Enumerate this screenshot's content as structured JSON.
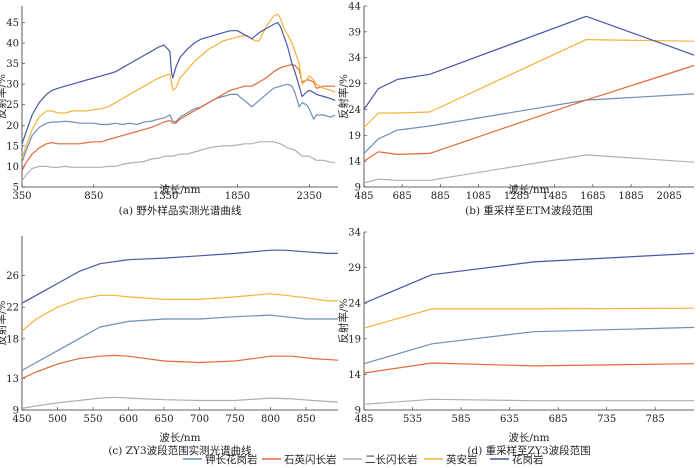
{
  "legend": {
    "placement": "bottom-center",
    "items": [
      {
        "label": "钾长花岗岩",
        "color": "#6f8fb8"
      },
      {
        "label": "石英闪长岩",
        "color": "#e26a3a"
      },
      {
        "label": "二长闪长岩",
        "color": "#b0b0b0"
      },
      {
        "label": "英安岩",
        "color": "#f3b23a"
      },
      {
        "label": "花岗岩",
        "color": "#4a57a3"
      }
    ]
  },
  "chart_data": [
    {
      "type": "line",
      "caption": "(a) 野外样品实测光谱曲线",
      "xlabel": "波长/nm",
      "ylabel": "反射率/%",
      "xlim": [
        350,
        2550
      ],
      "ylim": [
        5,
        49
      ],
      "xticks": [
        350,
        850,
        1350,
        1850,
        2350
      ],
      "yticks": [
        5,
        10,
        15,
        20,
        25,
        30,
        35,
        40,
        45
      ],
      "series": [
        {
          "name": "钾长花岗岩",
          "color": "#6f8fb8",
          "x": [
            350,
            380,
            420,
            470,
            520,
            560,
            600,
            650,
            700,
            750,
            800,
            850,
            900,
            950,
            1000,
            1050,
            1100,
            1150,
            1200,
            1250,
            1300,
            1340,
            1380,
            1400,
            1420,
            1450,
            1500,
            1550,
            1600,
            1650,
            1700,
            1750,
            1800,
            1850,
            1870,
            1900,
            1950,
            2000,
            2050,
            2100,
            2150,
            2200,
            2230,
            2250,
            2280,
            2300,
            2330,
            2350,
            2380,
            2400,
            2450,
            2500,
            2530
          ],
          "y": [
            11,
            14,
            17.5,
            19.5,
            20.5,
            20.8,
            20.8,
            21,
            20.8,
            20.5,
            20.5,
            20.5,
            20.2,
            20.2,
            20.5,
            20.2,
            20.5,
            20.2,
            20.8,
            21,
            21.5,
            21.8,
            22.5,
            21,
            20.8,
            22,
            23,
            24,
            24.5,
            25.5,
            26.5,
            27,
            27.5,
            27.5,
            26.8,
            26,
            24.5,
            26,
            27.5,
            29,
            29.5,
            30,
            29.5,
            28,
            24.5,
            25.5,
            25,
            24,
            21.5,
            22.5,
            22.5,
            22,
            22.5
          ]
        },
        {
          "name": "石英闪长岩",
          "color": "#e26a3a",
          "x": [
            350,
            380,
            420,
            470,
            520,
            560,
            600,
            650,
            700,
            750,
            800,
            850,
            900,
            950,
            1000,
            1050,
            1100,
            1150,
            1200,
            1250,
            1300,
            1340,
            1380,
            1400,
            1420,
            1450,
            1500,
            1550,
            1600,
            1650,
            1700,
            1750,
            1800,
            1850,
            1900,
            1950,
            2000,
            2050,
            2100,
            2150,
            2200,
            2230,
            2250,
            2280,
            2300,
            2330,
            2350,
            2380,
            2400,
            2450,
            2500,
            2530
          ],
          "y": [
            9,
            11,
            13,
            14.5,
            15.5,
            15.8,
            15.5,
            15.5,
            15.5,
            15.5,
            15.8,
            16,
            16,
            16.5,
            17,
            17.5,
            18,
            18.5,
            19,
            19.5,
            20.2,
            20.8,
            21.2,
            20.5,
            20.5,
            21.5,
            22.5,
            23.5,
            24.5,
            25.5,
            26.5,
            27.5,
            28.5,
            29,
            29.5,
            29.5,
            30.5,
            31.5,
            33,
            34,
            34.5,
            34.8,
            34.5,
            33.5,
            30.5,
            31,
            31,
            30.5,
            29,
            29.5,
            29.5,
            29.5
          ]
        },
        {
          "name": "二长闪长岩",
          "color": "#b0b0b0",
          "x": [
            350,
            380,
            420,
            470,
            520,
            560,
            600,
            650,
            700,
            750,
            800,
            850,
            900,
            950,
            1000,
            1050,
            1100,
            1150,
            1200,
            1250,
            1300,
            1350,
            1400,
            1450,
            1500,
            1550,
            1600,
            1650,
            1700,
            1750,
            1800,
            1850,
            1900,
            1950,
            2000,
            2050,
            2100,
            2150,
            2200,
            2250,
            2300,
            2350,
            2400,
            2450,
            2500,
            2530
          ],
          "y": [
            6.5,
            8,
            9.5,
            10,
            10,
            9.8,
            9.8,
            10,
            9.8,
            9.8,
            9.8,
            9.8,
            9.8,
            10,
            10,
            10.5,
            10.8,
            11,
            11.2,
            11.8,
            12,
            12.5,
            12.5,
            13,
            13,
            13.5,
            14,
            14.5,
            14.8,
            15,
            15,
            15.2,
            15.5,
            15.5,
            16,
            16,
            16,
            15.5,
            14.5,
            14,
            12.5,
            12.5,
            11.5,
            11.5,
            11,
            11
          ]
        },
        {
          "name": "英安岩",
          "color": "#f3b23a",
          "x": [
            350,
            380,
            420,
            470,
            520,
            560,
            600,
            650,
            700,
            750,
            800,
            850,
            900,
            950,
            1000,
            1050,
            1100,
            1150,
            1200,
            1250,
            1300,
            1340,
            1380,
            1400,
            1420,
            1450,
            1500,
            1550,
            1600,
            1650,
            1700,
            1750,
            1800,
            1850,
            1900,
            1930,
            1950,
            1980,
            2000,
            2050,
            2100,
            2130,
            2150,
            2180,
            2200,
            2230,
            2250,
            2280,
            2300,
            2330,
            2350,
            2380,
            2400,
            2450,
            2500,
            2530
          ],
          "y": [
            12,
            15,
            19,
            22,
            23.5,
            23.5,
            23,
            23,
            23.5,
            23.5,
            23.5,
            23.8,
            24,
            24.5,
            25.5,
            26.5,
            27.5,
            28.5,
            29.5,
            30.5,
            31.5,
            32,
            32.5,
            28.5,
            29,
            31.5,
            33.5,
            35.5,
            37,
            38.5,
            39.5,
            40.5,
            41,
            41.5,
            41.8,
            41.5,
            41,
            40.5,
            40.5,
            44,
            46.5,
            47,
            46,
            43,
            42,
            40,
            38,
            35,
            30,
            31,
            32,
            31,
            30,
            29,
            28.5,
            28
          ]
        },
        {
          "name": "花岗岩",
          "color": "#4a57a3",
          "x": [
            350,
            380,
            420,
            470,
            520,
            560,
            600,
            650,
            700,
            750,
            800,
            850,
            900,
            950,
            1000,
            1050,
            1100,
            1150,
            1200,
            1250,
            1300,
            1340,
            1380,
            1390,
            1400,
            1420,
            1450,
            1500,
            1550,
            1600,
            1650,
            1700,
            1750,
            1800,
            1850,
            1900,
            1930,
            1950,
            2000,
            2050,
            2100,
            2130,
            2150,
            2180,
            2200,
            2230,
            2250,
            2280,
            2300,
            2330,
            2350,
            2380,
            2400,
            2450,
            2500,
            2530
          ],
          "y": [
            15.5,
            18.5,
            22.5,
            25.5,
            27.5,
            28.5,
            29,
            29.5,
            30,
            30.5,
            31,
            31.5,
            32,
            32.5,
            33,
            34,
            35,
            36,
            37,
            38,
            39,
            39.5,
            38,
            33,
            31.5,
            34,
            36.5,
            38.5,
            40,
            41,
            41.5,
            42,
            42.5,
            43,
            43,
            42,
            41.5,
            41,
            42.5,
            43.5,
            44.5,
            45,
            44,
            41,
            39,
            35,
            33,
            29.5,
            27,
            28,
            28.5,
            28,
            27.5,
            27,
            26.5,
            26
          ]
        }
      ]
    },
    {
      "type": "line",
      "caption": "(b) 重采样至ETM波段范围",
      "xlabel": "波长/nm",
      "ylabel": "反射率/%",
      "xlim": [
        485,
        2215
      ],
      "ylim": [
        9,
        44
      ],
      "xticks": [
        485,
        685,
        885,
        1085,
        1285,
        1485,
        1685,
        1885,
        2085
      ],
      "yticks": [
        9,
        14,
        19,
        24,
        29,
        34,
        39,
        44
      ],
      "series": [
        {
          "name": "钾长花岗岩",
          "color": "#6f8fb8",
          "x": [
            485,
            560,
            660,
            830,
            1650,
            2215
          ],
          "y": [
            15.5,
            18.3,
            20,
            20.8,
            25.8,
            27
          ]
        },
        {
          "name": "石英闪长岩",
          "color": "#e26a3a",
          "x": [
            485,
            560,
            660,
            830,
            1650,
            2215
          ],
          "y": [
            14,
            15.8,
            15.3,
            15.5,
            25.8,
            32.5
          ]
        },
        {
          "name": "二长闪长岩",
          "color": "#b0b0b0",
          "x": [
            485,
            560,
            660,
            830,
            1650,
            2215
          ],
          "y": [
            9.8,
            10.5,
            10.3,
            10.3,
            15.2,
            13.8
          ]
        },
        {
          "name": "英安岩",
          "color": "#f3b23a",
          "x": [
            485,
            560,
            660,
            830,
            1650,
            2215
          ],
          "y": [
            20.5,
            23.3,
            23.3,
            23.5,
            37.5,
            37.2
          ]
        },
        {
          "name": "花岗岩",
          "color": "#4a57a3",
          "x": [
            485,
            560,
            660,
            830,
            1650,
            2215
          ],
          "y": [
            24,
            28,
            29.8,
            30.8,
            42,
            34.5
          ]
        }
      ]
    },
    {
      "type": "line",
      "caption": "(c) ZY3波段范围实测光谱曲线",
      "xlabel": "波长/nm",
      "ylabel": "反射率/%",
      "xlim": [
        450,
        895
      ],
      "ylim": [
        9,
        31
      ],
      "xticks": [
        450,
        500,
        550,
        600,
        650,
        700,
        750,
        800,
        850
      ],
      "yticks": [
        9,
        13,
        18,
        22,
        26
      ],
      "series": [
        {
          "name": "钾长花岗岩",
          "color": "#6f8fb8",
          "x": [
            450,
            470,
            500,
            530,
            560,
            600,
            650,
            700,
            750,
            800,
            820,
            850,
            880,
            895
          ],
          "y": [
            14,
            15,
            16.5,
            18,
            19.5,
            20.2,
            20.5,
            20.5,
            20.8,
            21,
            20.8,
            20.5,
            20.5,
            20.5
          ]
        },
        {
          "name": "石英闪长岩",
          "color": "#e26a3a",
          "x": [
            450,
            470,
            500,
            530,
            560,
            580,
            600,
            650,
            700,
            750,
            800,
            830,
            860,
            895
          ],
          "y": [
            13,
            13.8,
            14.8,
            15.5,
            15.8,
            15.9,
            15.8,
            15.2,
            15,
            15.2,
            15.8,
            15.8,
            15.5,
            15.3
          ]
        },
        {
          "name": "二长闪长岩",
          "color": "#b0b0b0",
          "x": [
            450,
            470,
            500,
            530,
            560,
            580,
            600,
            650,
            700,
            750,
            800,
            830,
            860,
            895
          ],
          "y": [
            9.2,
            9.5,
            9.9,
            10.2,
            10.5,
            10.6,
            10.5,
            10.3,
            10.2,
            10.2,
            10.5,
            10.4,
            10.2,
            10
          ]
        },
        {
          "name": "英安岩",
          "color": "#f3b23a",
          "x": [
            450,
            470,
            500,
            530,
            560,
            580,
            600,
            650,
            700,
            750,
            800,
            820,
            850,
            880,
            895
          ],
          "y": [
            19,
            20.5,
            22,
            23,
            23.5,
            23.5,
            23.3,
            23,
            23,
            23.3,
            23.7,
            23.5,
            23.2,
            22.8,
            22.8
          ]
        },
        {
          "name": "花岗岩",
          "color": "#4a57a3",
          "x": [
            450,
            470,
            500,
            530,
            560,
            600,
            650,
            700,
            750,
            800,
            820,
            850,
            880,
            895
          ],
          "y": [
            22.5,
            23.5,
            25,
            26.5,
            27.5,
            28,
            28.2,
            28.5,
            28.8,
            29.2,
            29.2,
            29,
            28.8,
            28.8
          ]
        }
      ]
    },
    {
      "type": "line",
      "caption": "(d) 重采样至ZY3波段范围",
      "xlabel": "波长/nm",
      "ylabel": "反射率/%",
      "xlim": [
        485,
        825
      ],
      "ylim": [
        9,
        34
      ],
      "xticks": [
        485,
        535,
        585,
        635,
        685,
        735,
        785
      ],
      "yticks": [
        9,
        14,
        19,
        24,
        29,
        34
      ],
      "series": [
        {
          "name": "钾长花岗岩",
          "color": "#6f8fb8",
          "x": [
            485,
            555,
            660,
            825
          ],
          "y": [
            15.5,
            18.3,
            20,
            20.6
          ]
        },
        {
          "name": "石英闪长岩",
          "color": "#e26a3a",
          "x": [
            485,
            555,
            660,
            825
          ],
          "y": [
            14.2,
            15.6,
            15.2,
            15.5
          ]
        },
        {
          "name": "二长闪长岩",
          "color": "#b0b0b0",
          "x": [
            485,
            555,
            660,
            825
          ],
          "y": [
            9.8,
            10.5,
            10.3,
            10.3
          ]
        },
        {
          "name": "英安岩",
          "color": "#f3b23a",
          "x": [
            485,
            555,
            660,
            825
          ],
          "y": [
            20.5,
            23.2,
            23.2,
            23.3
          ]
        },
        {
          "name": "花岗岩",
          "color": "#4a57a3",
          "x": [
            485,
            555,
            660,
            825
          ],
          "y": [
            24,
            28,
            29.8,
            31
          ]
        }
      ]
    }
  ]
}
